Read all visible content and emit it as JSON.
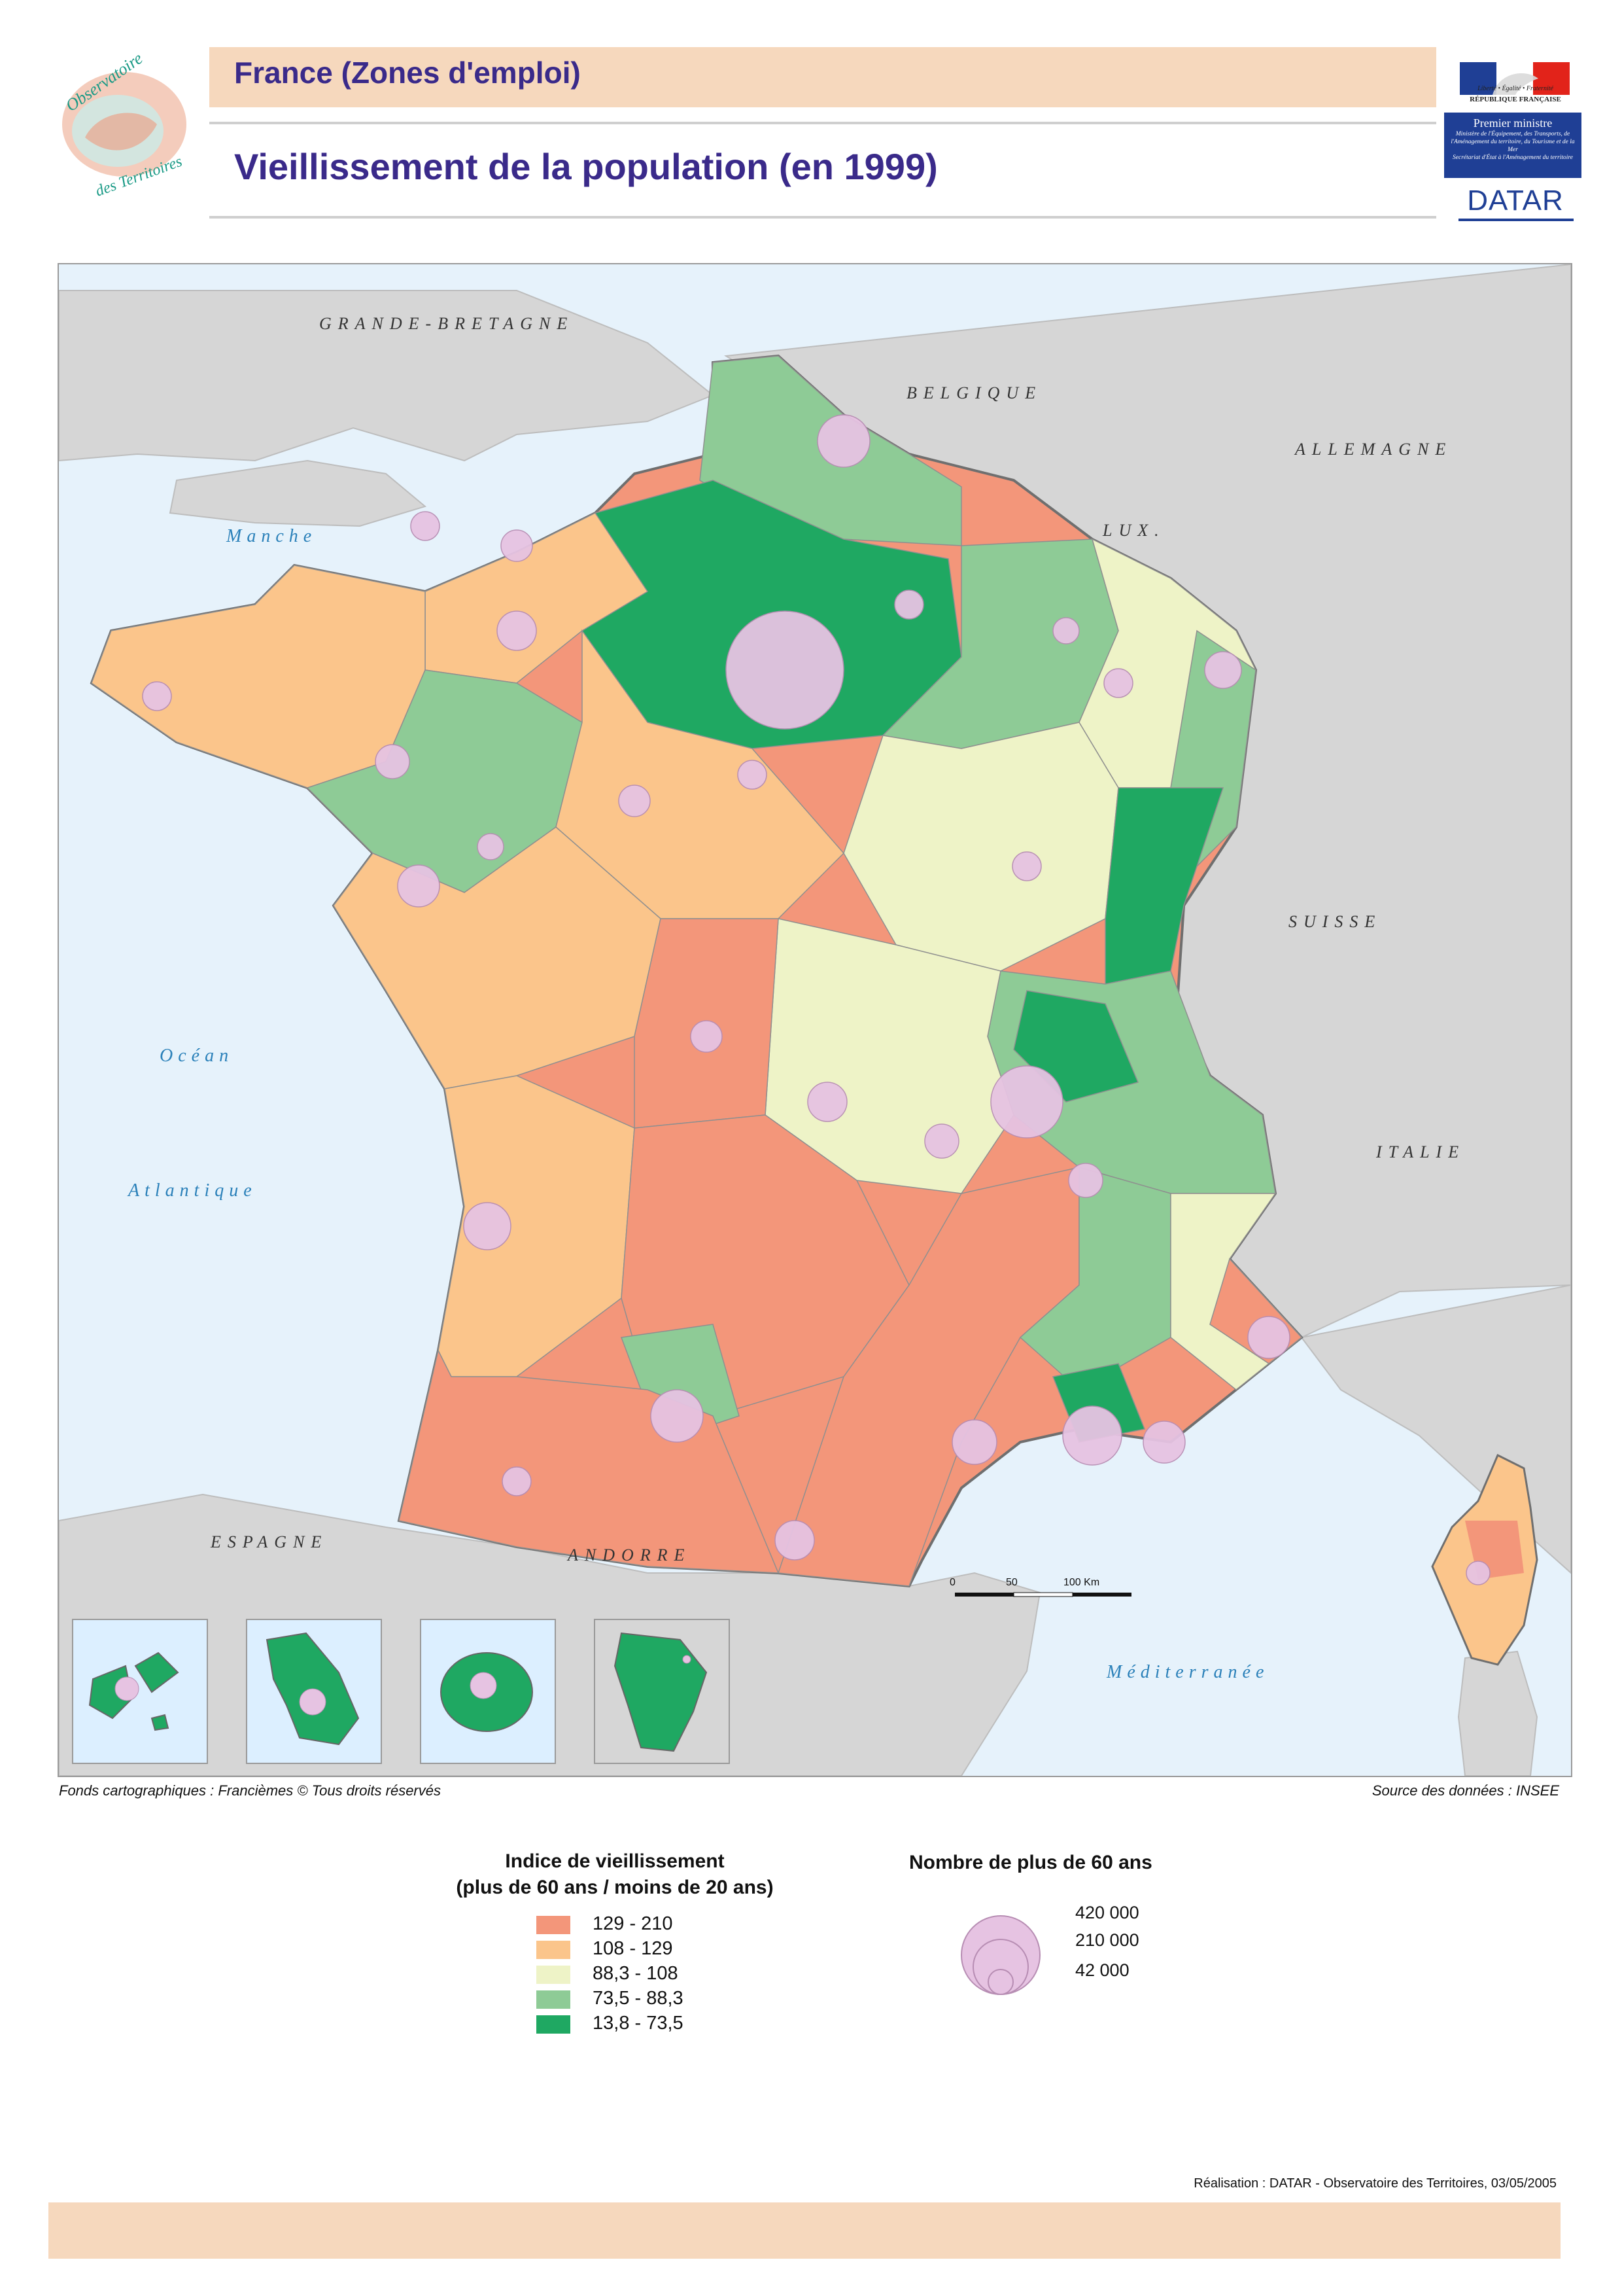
{
  "header": {
    "logo_text_top": "Observatoire",
    "logo_text_bottom": "des Territoires",
    "band_title": "France (Zones d'emploi)",
    "main_title": "Vieillissement de la population (en 1999)",
    "rf_motto": "Liberté • Égalité • Fraternité",
    "rf_name": "RÉPUBLIQUE FRANÇAISE",
    "pm_title": "Premier ministre",
    "pm_sub1": "Ministère de l'Équipement, des Transports, de l'Aménagement du territoire, du Tourisme et de la Mer",
    "pm_sub2": "Secrétariat d'État à l'Aménagement du territoire",
    "datar": "DATAR"
  },
  "map": {
    "labels": {
      "uk": "GRANDE-BRETAGNE",
      "belgique": "BELGIQUE",
      "allemagne": "ALLEMAGNE",
      "lux": "LUX.",
      "suisse": "SUISSE",
      "italie": "ITALIE",
      "espagne": "ESPAGNE",
      "andorre": "ANDORRE"
    },
    "seas": {
      "manche": "Manche",
      "ocean": "Océan",
      "atlantique": "Atlantique",
      "mediterranee": "Méditerranée"
    },
    "scale": {
      "t0": "0",
      "t1": "50",
      "t2": "100 Km"
    },
    "colors": {
      "sea": "#e6f2fb",
      "land_foreign": "#d6d6d6",
      "c1": "#f3967a",
      "c2": "#fbc58b",
      "c3": "#eef3c7",
      "c4": "#8ecb96",
      "c5": "#1fa862",
      "bubble": "#e6c3e2"
    }
  },
  "credits": {
    "left": "Fonds cartographiques : Francièmes © Tous droits réservés",
    "right": "Source des données : INSEE"
  },
  "legend": {
    "title_line1": "Indice de vieillissement",
    "title_line2": "(plus de 60 ans / moins de 20 ans)",
    "classes": [
      {
        "label": "129 - 210",
        "color": "#f3967a"
      },
      {
        "label": "108 - 129",
        "color": "#fbc58b"
      },
      {
        "label": "88,3 - 108",
        "color": "#eef3c7"
      },
      {
        "label": "73,5 - 88,3",
        "color": "#8ecb96"
      },
      {
        "label": "13,8 - 73,5",
        "color": "#1fa862"
      }
    ],
    "circles_title": "Nombre de plus de 60 ans",
    "circles": [
      {
        "label": "420 000",
        "value": 420000
      },
      {
        "label": "210 000",
        "value": 210000
      },
      {
        "label": "42 000",
        "value": 42000
      }
    ]
  },
  "footer": {
    "realisation": "Réalisation : DATAR - Observatoire des Territoires, 03/05/2005"
  }
}
